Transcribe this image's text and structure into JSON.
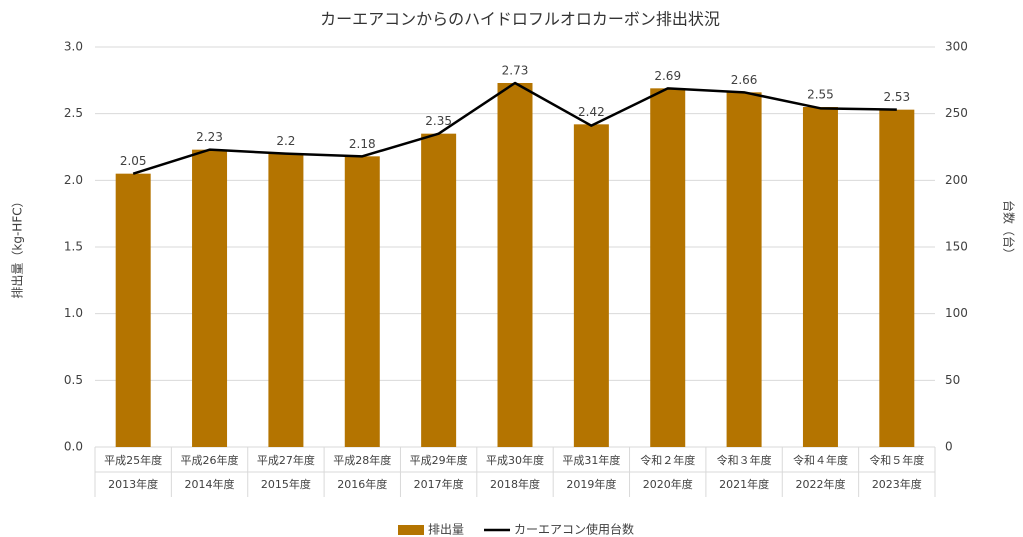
{
  "chart_data": {
    "type": "bar",
    "title": "カーエアコンからのハイドロフルオロカーボン排出状況",
    "y_label": "排出量（kg-HFC）",
    "y2_label": "台数（台）",
    "categories": [
      [
        "平成25年度",
        "2013年度"
      ],
      [
        "平成26年度",
        "2014年度"
      ],
      [
        "平成27年度",
        "2015年度"
      ],
      [
        "平成28年度",
        "2016年度"
      ],
      [
        "平成29年度",
        "2017年度"
      ],
      [
        "平成30年度",
        "2018年度"
      ],
      [
        "平成31年度",
        "2019年度"
      ],
      [
        "令和２年度",
        "2020年度"
      ],
      [
        "令和３年度",
        "2021年度"
      ],
      [
        "令和４年度",
        "2022年度"
      ],
      [
        "令和５年度",
        "2023年度"
      ]
    ],
    "series": [
      {
        "name": "排出量",
        "type": "bar",
        "axis": "y",
        "color": "#b47400",
        "values": [
          2.05,
          2.23,
          2.2,
          2.18,
          2.35,
          2.73,
          2.42,
          2.69,
          2.66,
          2.55,
          2.53
        ]
      },
      {
        "name": "カーエアコン使用台数",
        "type": "line",
        "axis": "y2",
        "color": "#000000",
        "values": [
          205,
          223,
          220,
          218,
          235,
          273,
          241,
          269,
          266,
          254,
          253
        ]
      }
    ],
    "ylim": [
      0,
      3
    ],
    "yticks": [
      {
        "value": 0,
        "label": "0.0"
      },
      0.5,
      {
        "value": 1,
        "label": "1.0"
      },
      1.5,
      {
        "value": 2,
        "label": "2.0"
      },
      2.5,
      {
        "value": 3,
        "label": "3.0"
      }
    ],
    "y2lim": [
      0,
      300
    ],
    "y2ticks": [
      0,
      50,
      100,
      150,
      200,
      250,
      300
    ],
    "grid": true,
    "legend": "bottom"
  }
}
